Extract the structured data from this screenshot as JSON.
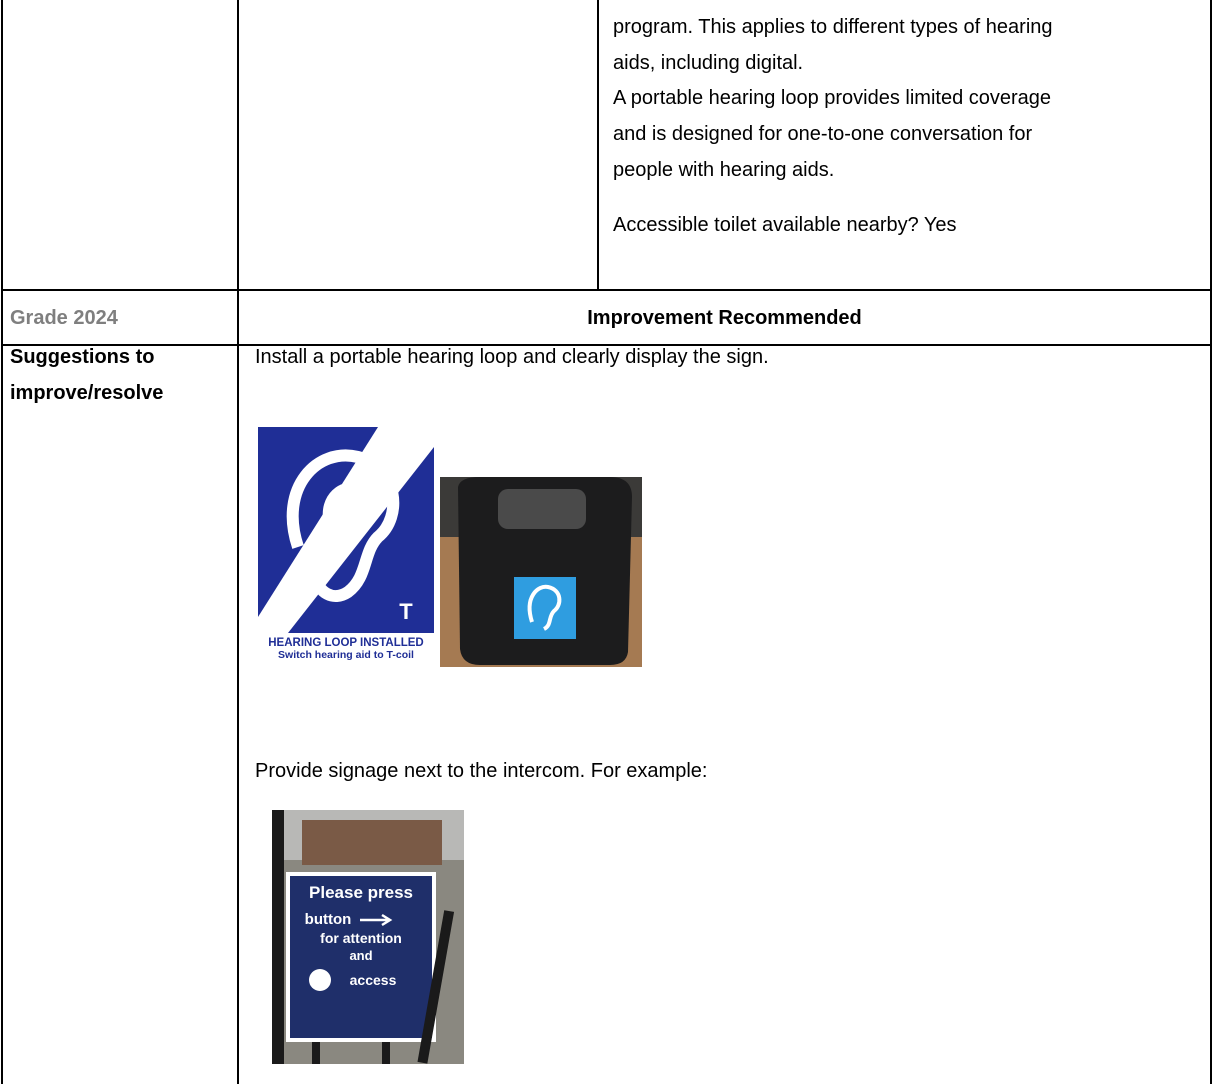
{
  "top_cell": {
    "paragraphs": [
      "program. This applies to different types of hearing aids, including digital.",
      "A portable hearing loop provides limited coverage and is designed for one-to-one conversation for people with hearing aids.",
      "Accessible toilet available nearby? Yes"
    ]
  },
  "grade": {
    "label": "Grade 2024",
    "value": "Improvement Recommended"
  },
  "suggestions": {
    "label": "Suggestions to improve/resolve",
    "items": [
      {
        "text": "Install a portable hearing loop and clearly display the sign.",
        "sign_lines": [
          "HEARING LOOP INSTALLED",
          "Switch hearing aid to T-coil"
        ],
        "sign_letter": "T"
      },
      {
        "text": "Provide signage next to the intercom. For example:",
        "sign_lines": [
          "Please press",
          "button",
          "for attention",
          "and",
          "access"
        ]
      }
    ]
  }
}
